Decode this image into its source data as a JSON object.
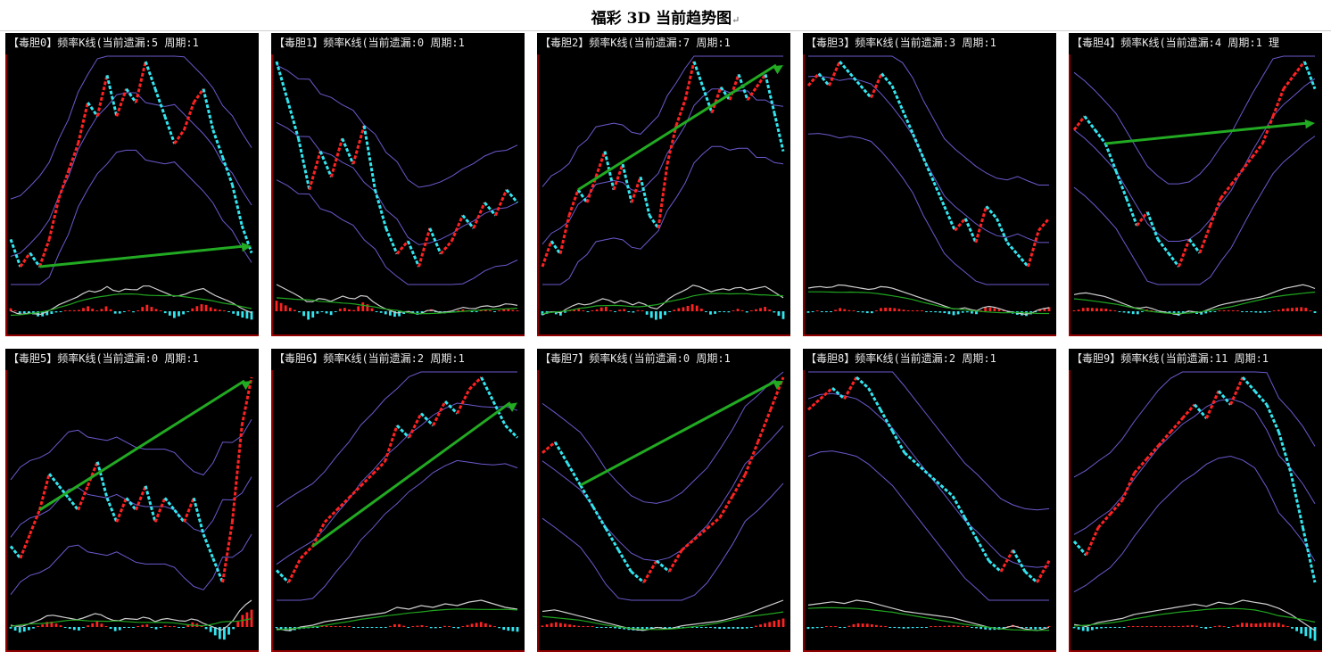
{
  "page_title": "福彩 3D 当前趋势图",
  "title_mark": "↵",
  "colors": {
    "background": "#000000",
    "frame": "#c00000",
    "up": "#ff2222",
    "down": "#33e6f0",
    "band": "#6a5acd",
    "trend_arrow": "#22aa22",
    "fast_line": "#cfcfcf",
    "slow_line": "#1fa51f"
  },
  "chart_data": [
    {
      "type": "line",
      "label": "【毒胆0】频率K线(当前遗漏:5 周期:1",
      "trend": "up-slight",
      "path": [
        5,
        3,
        4,
        3,
        5,
        8,
        10,
        12,
        15,
        14,
        17,
        14,
        16,
        15,
        18,
        16,
        14,
        12,
        13,
        15,
        16,
        13,
        11,
        9,
        6,
        4
      ]
    },
    {
      "type": "line",
      "label": "【毒胆1】频率K线(当前遗漏:0 周期:1",
      "trend": "none",
      "path": [
        18,
        15,
        12,
        8,
        11,
        9,
        12,
        10,
        13,
        8,
        5,
        3,
        4,
        2,
        5,
        3,
        4,
        6,
        5,
        7,
        6,
        8,
        7
      ]
    },
    {
      "type": "line",
      "label": "【毒胆2】频率K线(当前遗漏:7 周期:1",
      "trend": "up",
      "path": [
        2,
        4,
        3,
        6,
        8,
        7,
        9,
        11,
        8,
        10,
        7,
        9,
        6,
        5,
        10,
        13,
        15,
        18,
        16,
        14,
        16,
        15,
        17,
        15,
        16,
        17,
        14,
        11
      ]
    },
    {
      "type": "line",
      "label": "【毒胆3】频率K线(当前遗漏:3 周期:1",
      "trend": "none",
      "path": [
        16,
        17,
        16,
        18,
        17,
        16,
        15,
        17,
        16,
        14,
        12,
        10,
        8,
        6,
        4,
        5,
        3,
        6,
        5,
        3,
        2,
        1,
        4,
        5
      ]
    },
    {
      "type": "line",
      "label": "【毒胆4】频率K线(当前遗漏:4 周期:1 理",
      "trend": "up-slight",
      "path": [
        12,
        13,
        12,
        11,
        9,
        7,
        5,
        6,
        4,
        3,
        2,
        4,
        3,
        5,
        7,
        8,
        9,
        10,
        11,
        13,
        15,
        16,
        17,
        15
      ]
    },
    {
      "type": "line",
      "label": "【毒胆5】频率K线(当前遗漏:0 周期:1",
      "trend": "up",
      "path": [
        6,
        5,
        7,
        9,
        12,
        11,
        10,
        9,
        11,
        13,
        10,
        8,
        10,
        9,
        11,
        8,
        10,
        9,
        8,
        10,
        7,
        5,
        3,
        8,
        16,
        20
      ]
    },
    {
      "type": "line",
      "label": "【毒胆6】频率K线(当前遗漏:2 周期:1",
      "trend": "up",
      "path": [
        3,
        2,
        4,
        5,
        7,
        8,
        9,
        10,
        11,
        12,
        15,
        14,
        16,
        15,
        17,
        16,
        18,
        19,
        17,
        15,
        14
      ]
    },
    {
      "type": "line",
      "label": "【毒胆7】频率K线(当前遗漏:0 周期:1",
      "trend": "up",
      "path": [
        14,
        15,
        13,
        11,
        9,
        7,
        5,
        3,
        2,
        4,
        3,
        5,
        6,
        7,
        8,
        10,
        12,
        15,
        18,
        21
      ]
    },
    {
      "type": "line",
      "label": "【毒胆8】频率K线(当前遗漏:2 周期:1",
      "trend": "none",
      "path": [
        17,
        18,
        19,
        18,
        20,
        19,
        17,
        15,
        13,
        12,
        11,
        10,
        9,
        7,
        5,
        3,
        2,
        4,
        2,
        1,
        3
      ]
    },
    {
      "type": "line",
      "label": "【毒胆9】频率K线(当前遗漏:11 周期:1",
      "trend": "none",
      "path": [
        5,
        4,
        6,
        7,
        8,
        10,
        11,
        12,
        13,
        14,
        15,
        14,
        16,
        15,
        17,
        16,
        15,
        13,
        10,
        6,
        2
      ]
    }
  ]
}
